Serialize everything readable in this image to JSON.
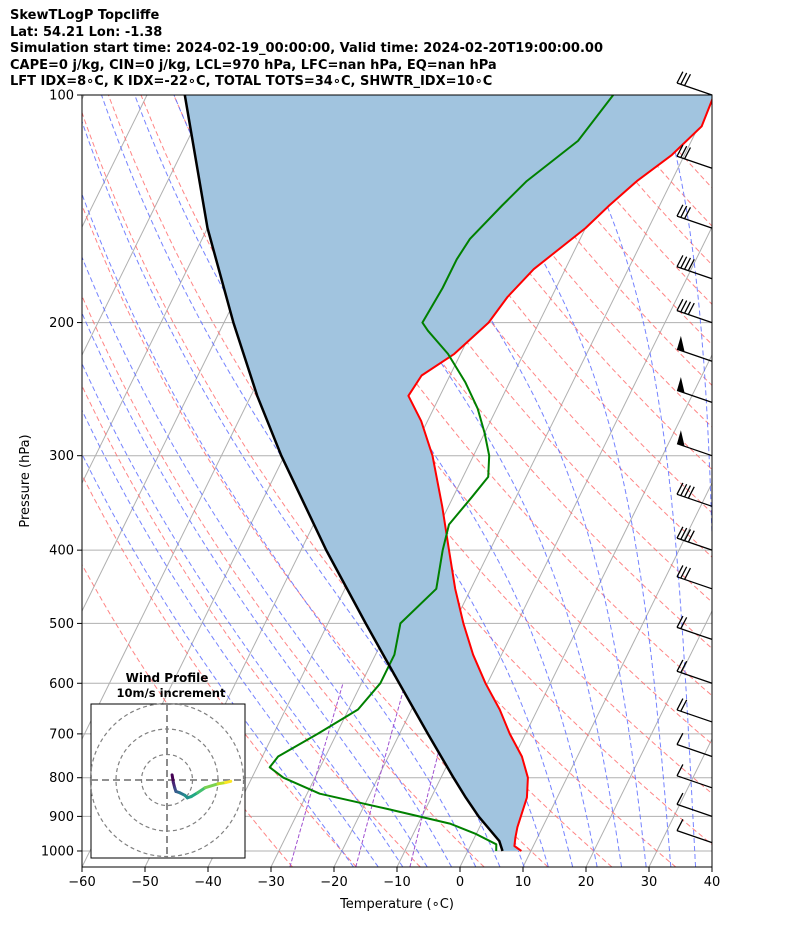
{
  "header": {
    "lines": [
      "SkewTLogP Topcliffe",
      "Lat: 54.21   Lon: -1.38",
      "Simulation start time: 2024-02-19_00:00:00, Valid time: 2024-02-20T19:00:00.00",
      "CAPE=0 j/kg, CIN=0 j/kg, LCL=970 hPa, LFC=nan hPa, EQ=nan hPa",
      "LFT IDX=8∘C, K IDX=-22∘C, TOTAL TOTS=34∘C, SHWTR_IDX=10∘C"
    ]
  },
  "chart_data": {
    "type": "skew-t",
    "xlabel": "Temperature (∘C)",
    "ylabel": "Pressure (hPa)",
    "xlim": [
      -60,
      40
    ],
    "ylim": [
      1050,
      100
    ],
    "x_ticks": [
      -60,
      -50,
      -40,
      -30,
      -20,
      -10,
      0,
      10,
      20,
      30,
      40
    ],
    "y_ticks": [
      100,
      200,
      300,
      400,
      500,
      600,
      700,
      800,
      900,
      1000
    ],
    "grid": true,
    "colors": {
      "temperature": "#ff0000",
      "dewpoint": "#008000",
      "parcel": "#000000",
      "fill": "#a1c4df",
      "dry_adiabat": "#ff6666",
      "moist_adiabat": "#5d6dff",
      "mixing_ratio": "#a050d0",
      "isotherm": "#b0b0b0"
    },
    "temperature": [
      {
        "p": 1000,
        "t": 8.5
      },
      {
        "p": 985,
        "t": 7.0
      },
      {
        "p": 960,
        "t": 6.5
      },
      {
        "p": 930,
        "t": 6.0
      },
      {
        "p": 850,
        "t": 5.2
      },
      {
        "p": 800,
        "t": 3.8
      },
      {
        "p": 750,
        "t": 1.2
      },
      {
        "p": 700,
        "t": -2.5
      },
      {
        "p": 650,
        "t": -6.0
      },
      {
        "p": 600,
        "t": -10.3
      },
      {
        "p": 550,
        "t": -14.5
      },
      {
        "p": 500,
        "t": -18.5
      },
      {
        "p": 450,
        "t": -22.5
      },
      {
        "p": 400,
        "t": -26.5
      },
      {
        "p": 350,
        "t": -31.0
      },
      {
        "p": 300,
        "t": -36.5
      },
      {
        "p": 270,
        "t": -41.0
      },
      {
        "p": 250,
        "t": -45.0
      },
      {
        "p": 235,
        "t": -44.5
      },
      {
        "p": 220,
        "t": -41.0
      },
      {
        "p": 200,
        "t": -38.0
      },
      {
        "p": 185,
        "t": -37.0
      },
      {
        "p": 170,
        "t": -35.0
      },
      {
        "p": 150,
        "t": -30.0
      },
      {
        "p": 140,
        "t": -28.0
      },
      {
        "p": 130,
        "t": -25.5
      },
      {
        "p": 120,
        "t": -22.0
      },
      {
        "p": 110,
        "t": -19.5
      },
      {
        "p": 100,
        "t": -20.0
      }
    ],
    "dewpoint": [
      {
        "p": 1000,
        "t": 4.5
      },
      {
        "p": 980,
        "t": 4.0
      },
      {
        "p": 950,
        "t": 0.0
      },
      {
        "p": 920,
        "t": -5.0
      },
      {
        "p": 880,
        "t": -16.0
      },
      {
        "p": 840,
        "t": -28.0
      },
      {
        "p": 800,
        "t": -35.0
      },
      {
        "p": 775,
        "t": -38.0
      },
      {
        "p": 750,
        "t": -37.5
      },
      {
        "p": 700,
        "t": -33.0
      },
      {
        "p": 650,
        "t": -28.5
      },
      {
        "p": 600,
        "t": -27.0
      },
      {
        "p": 550,
        "t": -27.0
      },
      {
        "p": 500,
        "t": -28.5
      },
      {
        "p": 450,
        "t": -25.5
      },
      {
        "p": 400,
        "t": -27.5
      },
      {
        "p": 370,
        "t": -28.5
      },
      {
        "p": 340,
        "t": -27.0
      },
      {
        "p": 320,
        "t": -26.0
      },
      {
        "p": 300,
        "t": -27.5
      },
      {
        "p": 280,
        "t": -30.0
      },
      {
        "p": 260,
        "t": -33.0
      },
      {
        "p": 240,
        "t": -37.0
      },
      {
        "p": 220,
        "t": -42.0
      },
      {
        "p": 205,
        "t": -47.0
      },
      {
        "p": 200,
        "t": -48.5
      },
      {
        "p": 180,
        "t": -48.0
      },
      {
        "p": 165,
        "t": -48.0
      },
      {
        "p": 155,
        "t": -47.5
      },
      {
        "p": 140,
        "t": -45.0
      },
      {
        "p": 130,
        "t": -43.0
      },
      {
        "p": 115,
        "t": -38.0
      },
      {
        "p": 100,
        "t": -36.0
      }
    ],
    "parcel": [
      {
        "p": 1000,
        "t": 5.5
      },
      {
        "p": 970,
        "t": 4.2
      },
      {
        "p": 900,
        "t": -1.0
      },
      {
        "p": 850,
        "t": -4.5
      },
      {
        "p": 800,
        "t": -8.0
      },
      {
        "p": 700,
        "t": -15.5
      },
      {
        "p": 600,
        "t": -24.0
      },
      {
        "p": 500,
        "t": -34.0
      },
      {
        "p": 400,
        "t": -46.0
      },
      {
        "p": 300,
        "t": -60.5
      },
      {
        "p": 250,
        "t": -69.0
      },
      {
        "p": 200,
        "t": -78.5
      },
      {
        "p": 150,
        "t": -90.0
      },
      {
        "p": 100,
        "t": -104.0
      }
    ],
    "wind_barbs": [
      {
        "p": 100,
        "barb": "3 full"
      },
      {
        "p": 125,
        "barb": "3 full"
      },
      {
        "p": 150,
        "barb": "3 full"
      },
      {
        "p": 175,
        "barb": "4 full"
      },
      {
        "p": 200,
        "barb": "4 full"
      },
      {
        "p": 225,
        "barb": "pennant"
      },
      {
        "p": 255,
        "barb": "pennant"
      },
      {
        "p": 300,
        "barb": "pennant"
      },
      {
        "p": 350,
        "barb": "4 full"
      },
      {
        "p": 400,
        "barb": "4 full"
      },
      {
        "p": 450,
        "barb": "3 full"
      },
      {
        "p": 525,
        "barb": "2 full"
      },
      {
        "p": 600,
        "barb": "2 full"
      },
      {
        "p": 675,
        "barb": "2 full"
      },
      {
        "p": 750,
        "barb": "1 full"
      },
      {
        "p": 825,
        "barb": "1 full"
      },
      {
        "p": 900,
        "barb": "1 full"
      },
      {
        "p": 975,
        "barb": "1 full"
      }
    ],
    "hodograph": {
      "title": "Wind Profile",
      "subtitle": "10m/s increment",
      "rings": [
        10,
        20,
        30
      ],
      "trace": [
        [
          2,
          2
        ],
        [
          2.5,
          -1
        ],
        [
          3,
          -3
        ],
        [
          3.5,
          -4.5
        ],
        [
          5,
          -5
        ],
        [
          7,
          -6
        ],
        [
          8,
          -7
        ],
        [
          9.5,
          -6.5
        ],
        [
          12,
          -5
        ],
        [
          15,
          -3
        ],
        [
          20,
          -1.5
        ],
        [
          23,
          -1
        ],
        [
          25,
          -0.5
        ]
      ]
    }
  }
}
